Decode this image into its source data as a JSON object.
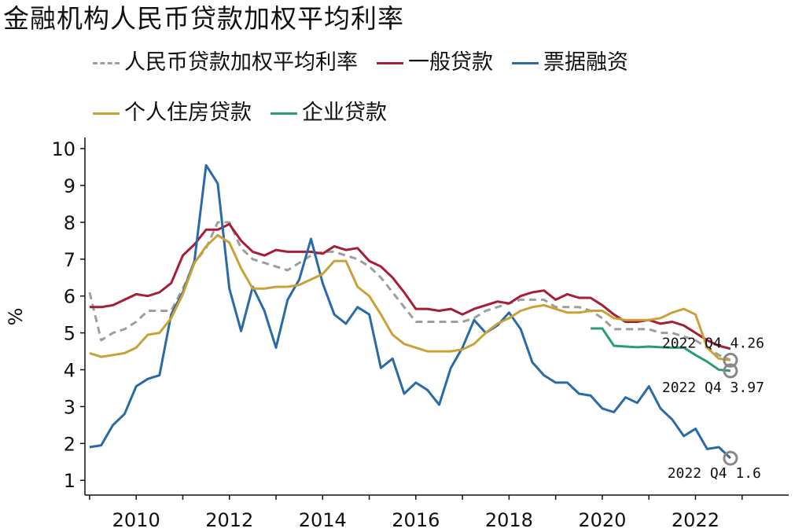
{
  "chart_data": {
    "type": "line",
    "title": "金融机构人民币贷款加权平均利率",
    "ylabel": "%",
    "xlabel": "",
    "xlim": [
      2008.9,
      2024.0
    ],
    "ylim": [
      0.6,
      10.3
    ],
    "x_ticks": [
      2010,
      2012,
      2014,
      2016,
      2018,
      2020,
      2022
    ],
    "y_ticks": [
      1,
      2,
      3,
      4,
      5,
      6,
      7,
      8,
      9,
      10
    ],
    "grid": false,
    "legend_position": "top",
    "series": [
      {
        "name": "人民币贷款加权平均利率",
        "color": "#9e9e9e",
        "dashed": true,
        "x": [
          2009.0,
          2009.25,
          2009.5,
          2009.75,
          2010.0,
          2010.25,
          2010.5,
          2010.75,
          2011.0,
          2011.25,
          2011.5,
          2011.75,
          2012.0,
          2012.25,
          2012.5,
          2012.75,
          2013.0,
          2013.25,
          2013.5,
          2013.75,
          2014.0,
          2014.25,
          2014.5,
          2014.75,
          2015.0,
          2015.25,
          2015.5,
          2015.75,
          2016.0,
          2016.25,
          2016.5,
          2016.75,
          2017.0,
          2017.25,
          2017.5,
          2017.75,
          2018.0,
          2018.25,
          2018.5,
          2018.75,
          2019.0,
          2019.25,
          2019.5,
          2019.75,
          2020.0,
          2020.25,
          2020.5,
          2020.75,
          2021.0,
          2021.25,
          2021.5,
          2021.75,
          2022.0,
          2022.25,
          2022.5,
          2022.75
        ],
        "values": [
          6.1,
          4.8,
          5.0,
          5.1,
          5.3,
          5.6,
          5.6,
          5.6,
          6.2,
          6.9,
          7.3,
          8.0,
          8.0,
          7.3,
          7.0,
          6.9,
          6.8,
          6.7,
          6.9,
          7.1,
          7.2,
          7.2,
          7.1,
          7.0,
          6.8,
          6.5,
          6.1,
          5.7,
          5.3,
          5.3,
          5.3,
          5.3,
          5.3,
          5.4,
          5.6,
          5.7,
          5.8,
          5.9,
          5.9,
          5.9,
          5.7,
          5.7,
          5.7,
          5.6,
          5.4,
          5.1,
          5.1,
          5.1,
          5.1,
          5.0,
          5.0,
          4.9,
          4.8,
          4.6,
          4.4,
          4.26
        ]
      },
      {
        "name": "一般贷款",
        "color": "#a51d36",
        "dashed": false,
        "x": [
          2009.0,
          2009.25,
          2009.5,
          2009.75,
          2010.0,
          2010.25,
          2010.5,
          2010.75,
          2011.0,
          2011.25,
          2011.5,
          2011.75,
          2012.0,
          2012.25,
          2012.5,
          2012.75,
          2013.0,
          2013.25,
          2013.5,
          2013.75,
          2014.0,
          2014.25,
          2014.5,
          2014.75,
          2015.0,
          2015.25,
          2015.5,
          2015.75,
          2016.0,
          2016.25,
          2016.5,
          2016.75,
          2017.0,
          2017.25,
          2017.5,
          2017.75,
          2018.0,
          2018.25,
          2018.5,
          2018.75,
          2019.0,
          2019.25,
          2019.5,
          2019.75,
          2020.0,
          2020.25,
          2020.5,
          2020.75,
          2021.0,
          2021.25,
          2021.5,
          2021.75,
          2022.0,
          2022.25,
          2022.5,
          2022.75
        ],
        "values": [
          5.7,
          5.7,
          5.75,
          5.9,
          6.05,
          6.0,
          6.1,
          6.35,
          7.1,
          7.4,
          7.8,
          7.8,
          7.95,
          7.5,
          7.2,
          7.1,
          7.25,
          7.2,
          7.2,
          7.2,
          7.15,
          7.35,
          7.25,
          7.3,
          6.95,
          6.8,
          6.5,
          6.1,
          5.65,
          5.65,
          5.6,
          5.65,
          5.5,
          5.65,
          5.75,
          5.85,
          5.8,
          6.0,
          6.1,
          6.15,
          5.9,
          6.05,
          5.95,
          5.95,
          5.75,
          5.5,
          5.3,
          5.3,
          5.35,
          5.25,
          5.3,
          5.2,
          5.0,
          4.8,
          4.65,
          4.57
        ]
      },
      {
        "name": "票据融资",
        "color": "#2b6aa8",
        "dashed": false,
        "x": [
          2009.0,
          2009.25,
          2009.5,
          2009.75,
          2010.0,
          2010.25,
          2010.5,
          2010.75,
          2011.0,
          2011.25,
          2011.5,
          2011.75,
          2012.0,
          2012.25,
          2012.5,
          2012.75,
          2013.0,
          2013.25,
          2013.5,
          2013.75,
          2014.0,
          2014.25,
          2014.5,
          2014.75,
          2015.0,
          2015.25,
          2015.5,
          2015.75,
          2016.0,
          2016.25,
          2016.5,
          2016.75,
          2017.0,
          2017.25,
          2017.5,
          2017.75,
          2018.0,
          2018.25,
          2018.5,
          2018.75,
          2019.0,
          2019.25,
          2019.5,
          2019.75,
          2020.0,
          2020.25,
          2020.5,
          2020.75,
          2021.0,
          2021.25,
          2021.5,
          2021.75,
          2022.0,
          2022.25,
          2022.5,
          2022.75
        ],
        "values": [
          1.9,
          1.95,
          2.5,
          2.8,
          3.55,
          3.75,
          3.85,
          5.5,
          6.1,
          6.95,
          9.55,
          9.05,
          6.2,
          5.05,
          6.25,
          5.6,
          4.6,
          5.9,
          6.45,
          7.55,
          6.35,
          5.5,
          5.25,
          5.7,
          5.5,
          4.05,
          4.3,
          3.35,
          3.65,
          3.45,
          3.05,
          4.05,
          4.6,
          5.35,
          5.0,
          5.2,
          5.55,
          5.1,
          4.2,
          3.85,
          3.65,
          3.65,
          3.35,
          3.3,
          2.95,
          2.85,
          3.25,
          3.1,
          3.55,
          2.95,
          2.65,
          2.2,
          2.4,
          1.85,
          1.9,
          1.6
        ]
      },
      {
        "name": "个人住房贷款",
        "color": "#c9a237",
        "dashed": false,
        "x": [
          2009.0,
          2009.25,
          2009.5,
          2009.75,
          2010.0,
          2010.25,
          2010.5,
          2010.75,
          2011.0,
          2011.25,
          2011.5,
          2011.75,
          2012.0,
          2012.25,
          2012.5,
          2012.75,
          2013.0,
          2013.25,
          2013.5,
          2013.75,
          2014.0,
          2014.25,
          2014.5,
          2014.75,
          2015.0,
          2015.25,
          2015.5,
          2015.75,
          2016.0,
          2016.25,
          2016.5,
          2016.75,
          2017.0,
          2017.25,
          2017.5,
          2017.75,
          2018.0,
          2018.25,
          2018.5,
          2018.75,
          2019.0,
          2019.25,
          2019.5,
          2019.75,
          2020.0,
          2020.25,
          2020.5,
          2020.75,
          2021.0,
          2021.25,
          2021.5,
          2021.75,
          2022.0,
          2022.25,
          2022.5,
          2022.75
        ],
        "values": [
          4.45,
          4.35,
          4.4,
          4.45,
          4.6,
          4.95,
          5.0,
          5.4,
          6.05,
          6.9,
          7.35,
          7.65,
          7.45,
          6.75,
          6.2,
          6.2,
          6.25,
          6.25,
          6.3,
          6.45,
          6.6,
          6.95,
          6.95,
          6.25,
          6.0,
          5.5,
          4.95,
          4.7,
          4.6,
          4.5,
          4.5,
          4.5,
          4.55,
          4.7,
          5.0,
          5.25,
          5.4,
          5.6,
          5.7,
          5.75,
          5.65,
          5.55,
          5.55,
          5.6,
          5.6,
          5.4,
          5.35,
          5.35,
          5.35,
          5.4,
          5.55,
          5.65,
          5.5,
          4.6,
          4.3,
          4.26
        ]
      },
      {
        "name": "企业贷款",
        "color": "#2a9d78",
        "dashed": false,
        "x": [
          2019.75,
          2020.0,
          2020.25,
          2020.5,
          2020.75,
          2021.0,
          2021.25,
          2021.5,
          2021.75,
          2022.0,
          2022.25,
          2022.5,
          2022.75
        ],
        "values": [
          5.12,
          5.12,
          4.65,
          4.63,
          4.61,
          4.63,
          4.61,
          4.6,
          4.6,
          4.4,
          4.22,
          4.0,
          3.97
        ]
      }
    ],
    "annotations": [
      {
        "text": "2022 Q4 4.26",
        "x": 2022.75,
        "y": 4.26
      },
      {
        "text": "2022 Q4 3.97",
        "x": 2022.75,
        "y": 3.97
      },
      {
        "text": "2022 Q4 1.6",
        "x": 2022.75,
        "y": 1.6
      }
    ]
  }
}
